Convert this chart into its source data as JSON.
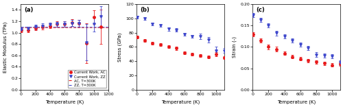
{
  "panel_a": {
    "temp_AC": [
      10,
      100,
      200,
      300,
      400,
      500,
      600,
      700,
      800,
      900,
      1000,
      1100
    ],
    "mod_AC": [
      1.05,
      1.05,
      1.08,
      1.1,
      1.12,
      1.15,
      1.15,
      1.18,
      1.17,
      0.82,
      1.27,
      1.1
    ],
    "err_AC": [
      0.04,
      0.04,
      0.04,
      0.04,
      0.04,
      0.05,
      0.05,
      0.06,
      0.06,
      0.35,
      0.12,
      0.3
    ],
    "temp_ZZ": [
      10,
      100,
      200,
      300,
      400,
      500,
      600,
      700,
      800,
      900,
      1000,
      1100
    ],
    "mod_ZZ": [
      1.06,
      1.07,
      1.1,
      1.12,
      1.14,
      1.15,
      1.15,
      1.17,
      1.16,
      0.83,
      1.15,
      1.28
    ],
    "err_ZZ": [
      0.03,
      0.03,
      0.04,
      0.04,
      0.04,
      0.04,
      0.05,
      0.05,
      0.06,
      0.32,
      0.13,
      0.18
    ],
    "ref_AC": 1.09,
    "ref_ZZ": 1.1,
    "ylabel": "Elastic Modulus (TPa)",
    "ylim": [
      0,
      1.5
    ],
    "yticks": [
      0.0,
      0.2,
      0.4,
      0.6,
      0.8,
      1.0,
      1.2,
      1.4
    ],
    "xlim": [
      0,
      1200
    ],
    "xticks": [
      0,
      200,
      400,
      600,
      800,
      1000,
      1200
    ],
    "label": "(a)"
  },
  "panel_b": {
    "temp_AC": [
      10,
      100,
      200,
      300,
      400,
      500,
      600,
      700,
      800,
      900,
      1000,
      1100
    ],
    "stress_AC": [
      74,
      69,
      65,
      63,
      60,
      58,
      52,
      50,
      48,
      46,
      50,
      45
    ],
    "err_AC": [
      2,
      2,
      2,
      2,
      2,
      2,
      2,
      2,
      2,
      2,
      3,
      2
    ],
    "temp_ZZ": [
      10,
      100,
      200,
      300,
      400,
      500,
      600,
      700,
      800,
      900,
      1000,
      1100
    ],
    "stress_ZZ": [
      102,
      100,
      92,
      90,
      85,
      84,
      78,
      75,
      75,
      70,
      55,
      55
    ],
    "err_ZZ": [
      2,
      2,
      2,
      2,
      2,
      2,
      2,
      2,
      4,
      4,
      5,
      3
    ],
    "ylabel": "Stress (GPa)",
    "ylim": [
      0,
      120
    ],
    "yticks": [
      0,
      20,
      40,
      60,
      80,
      100,
      120
    ],
    "xlim": [
      0,
      1100
    ],
    "xticks": [
      0,
      200,
      400,
      600,
      800,
      1000
    ],
    "label": "(b)"
  },
  "panel_c": {
    "temp_AC": [
      10,
      100,
      200,
      300,
      400,
      500,
      600,
      700,
      800,
      900,
      1000,
      1100
    ],
    "strain_AC": [
      0.13,
      0.115,
      0.1,
      0.095,
      0.085,
      0.077,
      0.072,
      0.068,
      0.065,
      0.062,
      0.058,
      0.06
    ],
    "err_AC": [
      0.005,
      0.005,
      0.005,
      0.005,
      0.004,
      0.004,
      0.004,
      0.004,
      0.004,
      0.004,
      0.004,
      0.004
    ],
    "temp_ZZ": [
      10,
      100,
      200,
      300,
      400,
      500,
      600,
      700,
      800,
      900,
      1000,
      1100
    ],
    "strain_ZZ": [
      0.175,
      0.163,
      0.15,
      0.132,
      0.125,
      0.115,
      0.105,
      0.097,
      0.082,
      0.08,
      0.078,
      0.063
    ],
    "err_ZZ": [
      0.005,
      0.005,
      0.005,
      0.005,
      0.005,
      0.005,
      0.005,
      0.005,
      0.005,
      0.005,
      0.005,
      0.005
    ],
    "ylabel": "Strain (-)",
    "ylim": [
      0,
      0.2
    ],
    "yticks": [
      0.0,
      0.05,
      0.1,
      0.15,
      0.2
    ],
    "xlim": [
      0,
      1100
    ],
    "xticks": [
      0,
      200,
      400,
      600,
      800,
      1000
    ],
    "label": "(c)"
  },
  "color_AC": "#e8191a",
  "color_ZZ": "#3f48cc",
  "xlabel": "Temperature (K)",
  "legend_labels": [
    "Current Work, AC",
    "Current Work, ZZ",
    "AC, T=300K",
    "ZZ, T=300K"
  ],
  "bg_color": "#ffffff",
  "figsize": [
    5.0,
    1.56
  ],
  "dpi": 100
}
